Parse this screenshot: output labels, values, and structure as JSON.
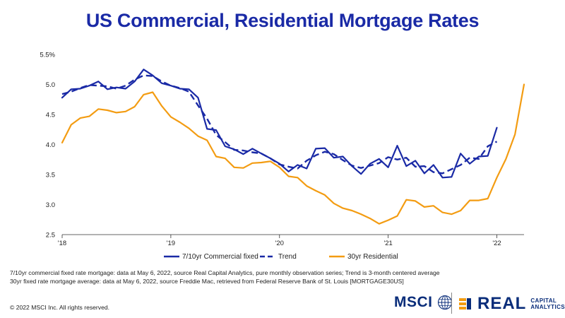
{
  "chart_data": {
    "type": "line",
    "title": "US Commercial, Residential Mortgage Rates",
    "xlabel": "",
    "ylabel": "",
    "ylim": [
      2.5,
      5.5
    ],
    "yticks": [
      "2.5",
      "3.0",
      "3.5",
      "4.0",
      "4.5",
      "5.0",
      "5.5%"
    ],
    "yticks_values": [
      2.5,
      3.0,
      3.5,
      4.0,
      4.5,
      5.0,
      5.5
    ],
    "xticks": [
      "'18",
      "'19",
      "'20",
      "'21",
      "'22"
    ],
    "xticks_month_index": [
      0,
      12,
      24,
      36,
      48
    ],
    "grid": false,
    "legend_position": "bottom-center",
    "series": [
      {
        "name": "7/10yr Commercial fixed",
        "color": "#1a2aa6",
        "style": "solid",
        "start_month_index": 0,
        "values": [
          4.78,
          4.92,
          4.93,
          4.98,
          5.05,
          4.92,
          4.95,
          4.93,
          5.05,
          5.25,
          5.15,
          5.02,
          4.98,
          4.93,
          4.92,
          4.78,
          4.26,
          4.24,
          3.97,
          3.92,
          3.84,
          3.93,
          3.85,
          3.77,
          3.68,
          3.55,
          3.66,
          3.6,
          3.93,
          3.94,
          3.78,
          3.8,
          3.64,
          3.51,
          3.68,
          3.76,
          3.62,
          3.98,
          3.64,
          3.73,
          3.52,
          3.66,
          3.45,
          3.46,
          3.85,
          3.68,
          3.8,
          3.81,
          4.28
        ]
      },
      {
        "name": "Trend",
        "color": "#1a2aa6",
        "style": "dashed",
        "start_month_index": 0,
        "values": [
          4.84,
          4.88,
          4.94,
          4.99,
          4.98,
          4.97,
          4.93,
          4.98,
          5.08,
          5.15,
          5.14,
          5.05,
          4.98,
          4.94,
          4.88,
          4.65,
          4.43,
          4.16,
          4.04,
          3.91,
          3.9,
          3.87,
          3.85,
          3.77,
          3.67,
          3.63,
          3.6,
          3.73,
          3.82,
          3.88,
          3.84,
          3.74,
          3.65,
          3.61,
          3.65,
          3.69,
          3.79,
          3.75,
          3.78,
          3.63,
          3.64,
          3.54,
          3.52,
          3.59,
          3.66,
          3.78,
          3.76,
          3.97,
          4.05
        ]
      },
      {
        "name": "30yr Residential",
        "color": "#f39c12",
        "style": "solid",
        "start_month_index": 0,
        "values": [
          4.03,
          4.33,
          4.44,
          4.47,
          4.59,
          4.57,
          4.53,
          4.55,
          4.63,
          4.83,
          4.87,
          4.64,
          4.46,
          4.37,
          4.27,
          4.14,
          4.07,
          3.8,
          3.77,
          3.62,
          3.61,
          3.69,
          3.7,
          3.72,
          3.62,
          3.47,
          3.45,
          3.31,
          3.23,
          3.16,
          3.02,
          2.94,
          2.9,
          2.84,
          2.77,
          2.68,
          2.74,
          2.81,
          3.08,
          3.06,
          2.96,
          2.98,
          2.87,
          2.84,
          2.9,
          3.07,
          3.07,
          3.1,
          3.45,
          3.76,
          4.17,
          5.0
        ]
      }
    ]
  },
  "footnotes": [
    "7/10yr commercial fixed rate mortgage: data at May 6, 2022, source Real Capital Analytics, pure monthly observation series; Trend is 3-month centered average",
    "30yr fixed rate mortgage average: data at May 6, 2022, source Freddie Mac, retrieved from Federal Reserve Bank of St. Louis [MORTGAGE30US]"
  ],
  "copyright": "© 2022 MSCI Inc. All rights reserved.",
  "logos": {
    "msci": "MSCI",
    "rca_main": "REAL",
    "rca_sub_1": "CAPITAL",
    "rca_sub_2": "ANALYTICS"
  }
}
